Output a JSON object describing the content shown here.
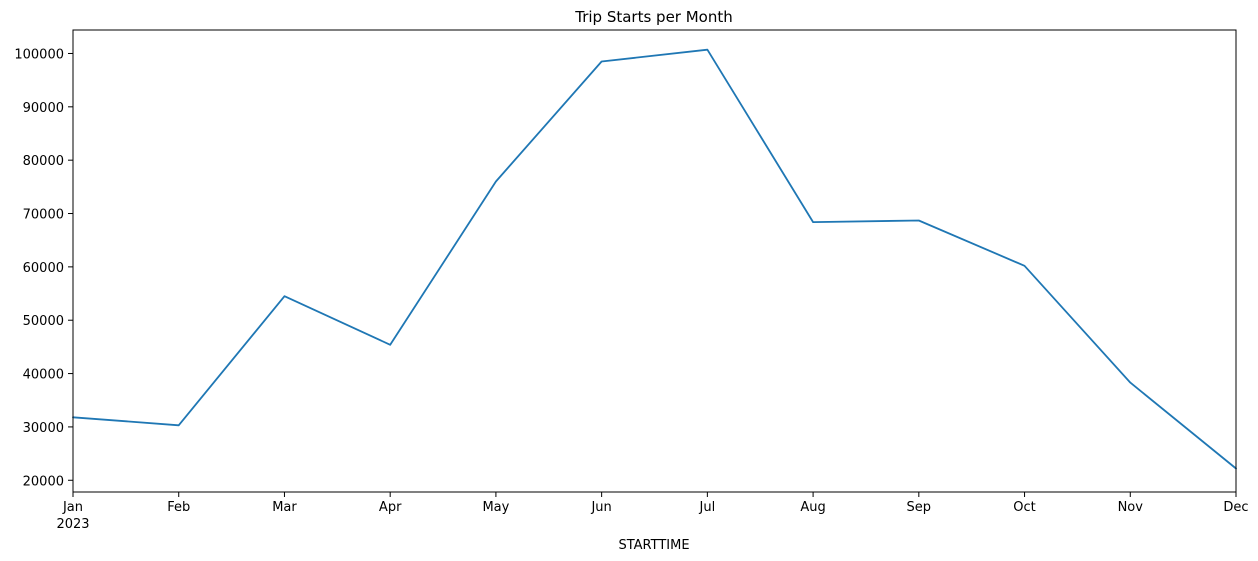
{
  "chart_data": {
    "type": "line",
    "title": "Trip Starts per Month",
    "xlabel": "STARTTIME",
    "ylabel": "",
    "categories": [
      "Jan",
      "Feb",
      "Mar",
      "Apr",
      "May",
      "Jun",
      "Jul",
      "Aug",
      "Sep",
      "Oct",
      "Nov",
      "Dec"
    ],
    "x_sublabel": "2023",
    "series": [
      {
        "values": [
          31800,
          30300,
          54500,
          45400,
          76000,
          98500,
          100700,
          68400,
          68700,
          60200,
          38300,
          22200
        ],
        "color": "#1f77b4"
      }
    ],
    "yticks": [
      20000,
      30000,
      40000,
      50000,
      60000,
      70000,
      80000,
      90000,
      100000
    ],
    "ylim": [
      17800,
      104400
    ],
    "grid": false
  }
}
